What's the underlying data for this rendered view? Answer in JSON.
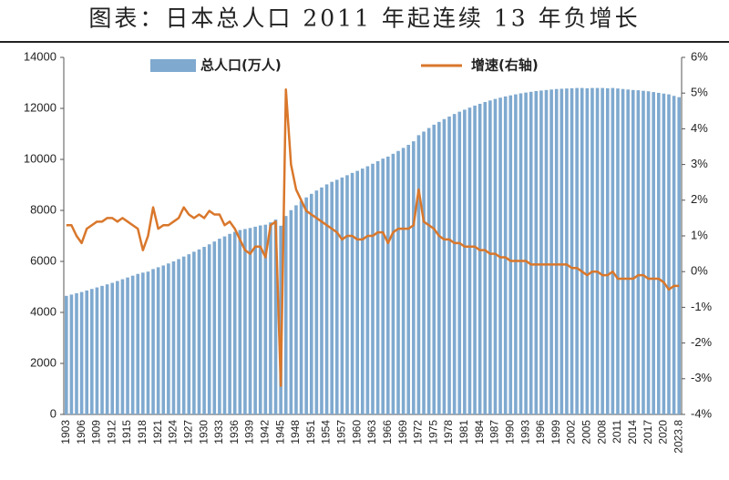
{
  "chart_data": {
    "type": "bar",
    "title": "图表：日本总人口 2011 年起连续 13 年负增长",
    "categories": [
      "1903",
      null,
      null,
      "1906",
      null,
      null,
      "1909",
      null,
      null,
      "1912",
      null,
      null,
      "1915",
      null,
      null,
      "1918",
      null,
      null,
      "1921",
      null,
      null,
      "1924",
      null,
      null,
      "1927",
      null,
      null,
      "1930",
      null,
      null,
      "1933",
      null,
      null,
      "1936",
      null,
      null,
      "1939",
      null,
      null,
      "1942",
      null,
      null,
      "1945",
      null,
      null,
      "1948",
      null,
      null,
      "1951",
      null,
      null,
      "1954",
      null,
      null,
      "1957",
      null,
      null,
      "1960",
      null,
      null,
      "1963",
      null,
      null,
      "1966",
      null,
      null,
      "1969",
      null,
      null,
      "1972",
      null,
      null,
      "1975",
      null,
      null,
      "1978",
      null,
      null,
      "1981",
      null,
      null,
      "1984",
      null,
      null,
      "1987",
      null,
      null,
      "1990",
      null,
      null,
      "1993",
      null,
      null,
      "1996",
      null,
      null,
      "1999",
      null,
      null,
      "2002",
      null,
      null,
      "2005",
      null,
      null,
      "2008",
      null,
      null,
      "2011",
      null,
      null,
      "2014",
      null,
      null,
      "2017",
      null,
      null,
      "2020",
      null,
      null,
      "2023.8"
    ],
    "series": [
      {
        "name": "总人口(万人)",
        "type": "bar",
        "color": "#7fa9cf",
        "values": [
          4650,
          4700,
          4750,
          4800,
          4860,
          4920,
          4980,
          5040,
          5100,
          5160,
          5230,
          5300,
          5370,
          5440,
          5510,
          5560,
          5600,
          5700,
          5770,
          5840,
          5920,
          6000,
          6090,
          6190,
          6280,
          6380,
          6470,
          6570,
          6670,
          6780,
          6890,
          6980,
          7080,
          7160,
          7230,
          7270,
          7310,
          7360,
          7410,
          7440,
          7530,
          7640,
          7400,
          7780,
          8010,
          8200,
          8370,
          8510,
          8650,
          8780,
          8900,
          9020,
          9120,
          9200,
          9290,
          9380,
          9470,
          9550,
          9640,
          9730,
          9830,
          9930,
          10030,
          10110,
          10220,
          10330,
          10450,
          10570,
          10710,
          10950,
          11090,
          11230,
          11360,
          11470,
          11580,
          11680,
          11780,
          11870,
          11950,
          12030,
          12110,
          12180,
          12250,
          12310,
          12370,
          12420,
          12470,
          12510,
          12550,
          12590,
          12620,
          12650,
          12680,
          12700,
          12720,
          12740,
          12760,
          12770,
          12780,
          12790,
          12800,
          12800,
          12790,
          12800,
          12800,
          12800,
          12790,
          12800,
          12780,
          12760,
          12740,
          12720,
          12710,
          12690,
          12670,
          12640,
          12610,
          12580,
          12550,
          12490,
          12440
        ]
      },
      {
        "name": "增速(右轴)",
        "type": "line",
        "axis": "y2",
        "color": "#d9772b",
        "values": [
          1.3,
          1.3,
          1.0,
          0.8,
          1.2,
          1.3,
          1.4,
          1.4,
          1.5,
          1.5,
          1.4,
          1.5,
          1.4,
          1.3,
          1.2,
          0.6,
          1.0,
          1.8,
          1.2,
          1.3,
          1.3,
          1.4,
          1.5,
          1.8,
          1.6,
          1.5,
          1.6,
          1.5,
          1.7,
          1.6,
          1.6,
          1.3,
          1.4,
          1.2,
          0.9,
          0.6,
          0.5,
          0.7,
          0.7,
          0.4,
          1.3,
          1.4,
          -3.2,
          5.1,
          3.0,
          2.3,
          2.0,
          1.7,
          1.6,
          1.5,
          1.4,
          1.3,
          1.2,
          1.1,
          0.9,
          1.0,
          1.0,
          0.9,
          0.9,
          1.0,
          1.0,
          1.1,
          1.1,
          0.8,
          1.1,
          1.2,
          1.2,
          1.2,
          1.3,
          2.3,
          1.4,
          1.3,
          1.2,
          1.0,
          0.9,
          0.9,
          0.8,
          0.8,
          0.7,
          0.7,
          0.7,
          0.6,
          0.6,
          0.5,
          0.5,
          0.4,
          0.4,
          0.3,
          0.3,
          0.3,
          0.3,
          0.2,
          0.2,
          0.2,
          0.2,
          0.2,
          0.2,
          0.2,
          0.2,
          0.1,
          0.1,
          0.0,
          -0.1,
          0.0,
          0.0,
          -0.1,
          -0.1,
          0.0,
          -0.2,
          -0.2,
          -0.2,
          -0.2,
          -0.1,
          -0.1,
          -0.2,
          -0.2,
          -0.2,
          -0.3,
          -0.5,
          -0.4,
          -0.4
        ]
      }
    ],
    "ylim": [
      0,
      14000
    ],
    "yticks": [
      0,
      2000,
      4000,
      6000,
      8000,
      10000,
      12000,
      14000
    ],
    "y2lim": [
      -4,
      6
    ],
    "y2ticks": [
      {
        "value": -4,
        "label": "-4%"
      },
      {
        "value": -3,
        "label": "-3%"
      },
      {
        "value": -2,
        "label": "-2%"
      },
      {
        "value": -1,
        "label": "-1%"
      },
      {
        "value": 0,
        "label": "0%"
      },
      {
        "value": 1,
        "label": "1%"
      },
      {
        "value": 2,
        "label": "2%"
      },
      {
        "value": 3,
        "label": "3%"
      },
      {
        "value": 4,
        "label": "4%"
      },
      {
        "value": 5,
        "label": "5%"
      },
      {
        "value": 6,
        "label": "6%"
      }
    ]
  }
}
